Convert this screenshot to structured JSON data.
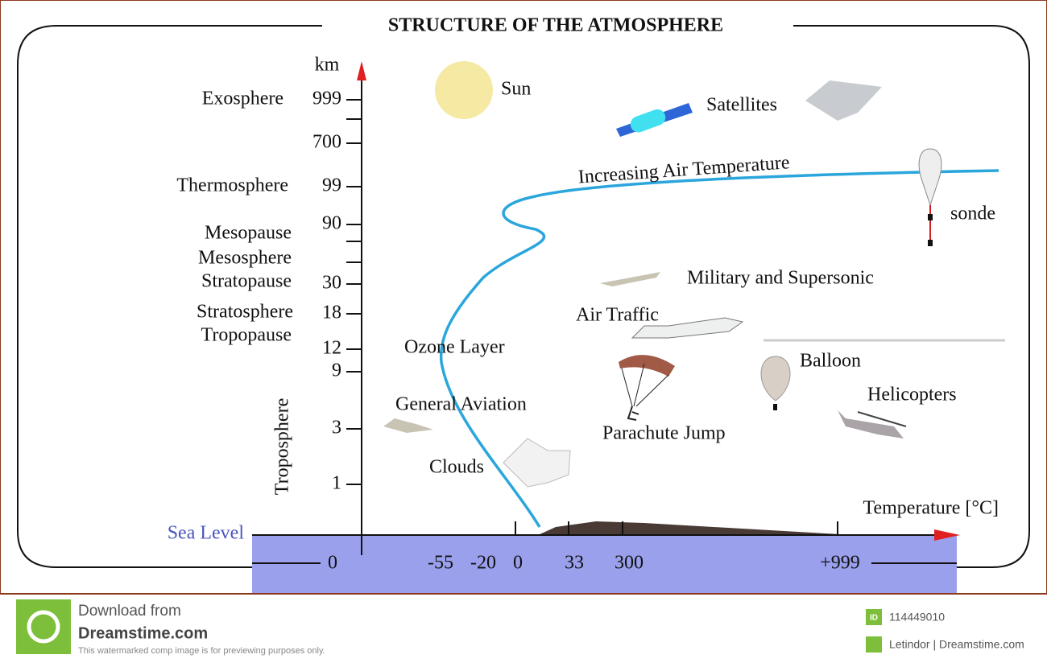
{
  "header": {
    "title": "STRUCTURE OF THE ATMOSPHERE"
  },
  "axes": {
    "y_unit": "km",
    "y_labels": [
      "999",
      "700",
      "99",
      "90",
      "30",
      "18",
      "12",
      "9",
      "3",
      "1"
    ],
    "x_labels": [
      "0",
      "-55",
      "-20",
      "0",
      "33",
      "300",
      "+999"
    ],
    "x_title": "Temperature [°C]",
    "sea_level": "Sea Level"
  },
  "layers": [
    "Exosphere",
    "Thermosphere",
    "Mesopause",
    "Mesosphere",
    "Stratopause",
    "Stratosphere",
    "Tropopause",
    "Troposphere"
  ],
  "annotations": [
    "Sun",
    "Satellites",
    "Increasing Air Temperature",
    "sonde",
    "Military and Supersonic",
    "Air Traffic",
    "Ozone Layer",
    "Balloon",
    "General Aviation",
    "Helicopters",
    "Parachute Jump",
    "Clouds"
  ],
  "footer": {
    "download": "Download from",
    "site": "Dreamstime.com",
    "note": "This watermarked comp image is for previewing purposes only.",
    "id_badge": "ID",
    "id": "114449010",
    "credit": "Letindor | Dreamstime.com"
  }
}
